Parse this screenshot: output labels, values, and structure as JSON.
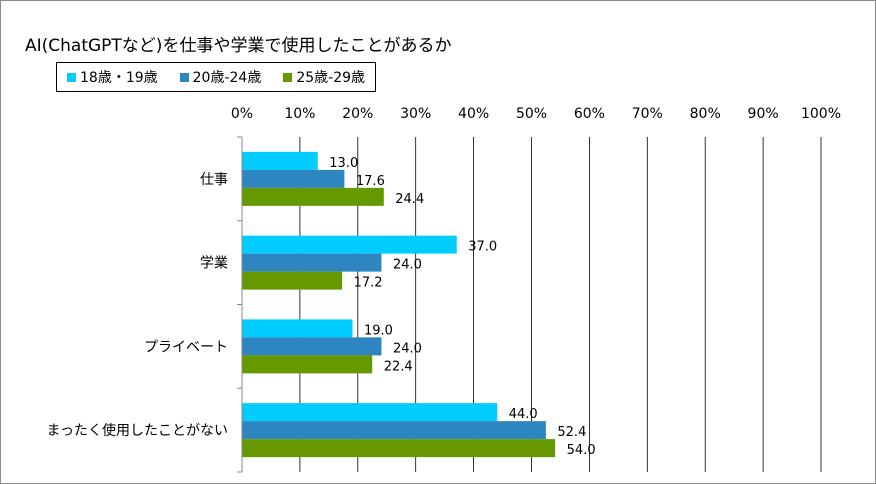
{
  "chart_data": {
    "type": "bar",
    "orientation": "horizontal",
    "title": "AI(ChatGPTなど)を仕事や学業で使用したことがあるか",
    "categories": [
      "仕事",
      "学業",
      "プライベート",
      "まったく使用したことがない"
    ],
    "series": [
      {
        "name": "18歳・19歳",
        "color": "#00ccff",
        "values": [
          13.0,
          37.0,
          19.0,
          44.0
        ]
      },
      {
        "name": "20歳-24歳",
        "color": "#2e86c1",
        "values": [
          17.6,
          24.0,
          24.0,
          52.4
        ]
      },
      {
        "name": "25歳-29歳",
        "color": "#669900",
        "values": [
          24.4,
          17.2,
          22.4,
          54.0
        ]
      }
    ],
    "xlim": [
      0,
      100
    ],
    "x_ticks": [
      "0%",
      "10%",
      "20%",
      "30%",
      "40%",
      "50%",
      "60%",
      "70%",
      "80%",
      "90%",
      "100%"
    ],
    "xlabel": "",
    "ylabel": "",
    "grid": "vertical",
    "legend_position": "top-left",
    "value_label_format": "one-decimal"
  }
}
